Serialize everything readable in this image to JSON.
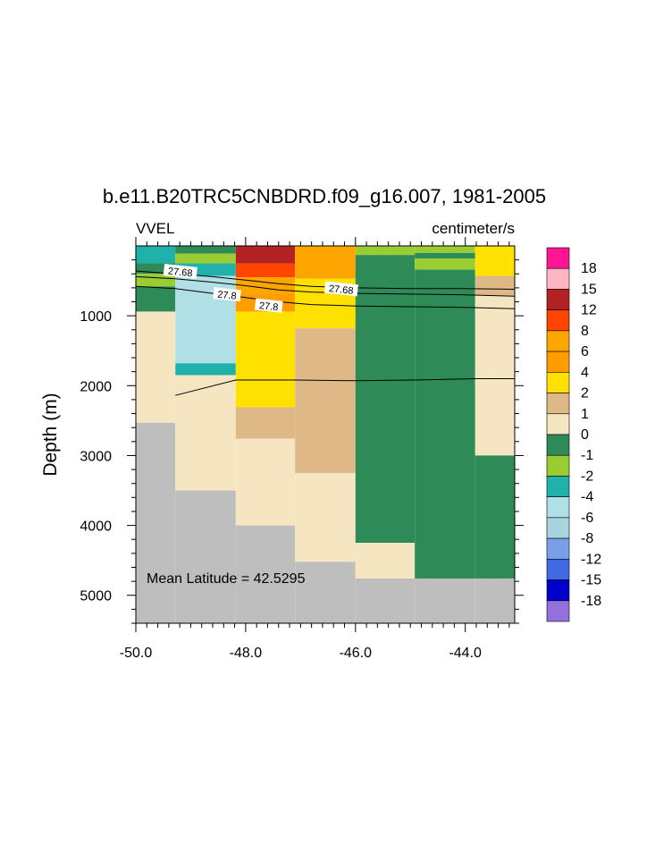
{
  "chart_data": {
    "type": "heatmap",
    "title": "b.e11.B20TRC5CNBDRD.f09_g16.007, 1981-2005",
    "left_label": "VVEL",
    "right_label": "centimeter/s",
    "xlabel": "",
    "ylabel": "Depth (m)",
    "xlim": [
      -50.0,
      -43.1
    ],
    "ylim": [
      5400,
      0
    ],
    "x_ticks": [
      -50.0,
      -48.0,
      -46.0,
      -44.0
    ],
    "x_tick_labels": [
      "-50.0",
      "-48.0",
      "-46.0",
      "-44.0"
    ],
    "y_ticks": [
      1000,
      2000,
      3000,
      4000,
      5000
    ],
    "y_tick_labels": [
      "1000",
      "2000",
      "3000",
      "4000",
      "5000"
    ],
    "annotation": "Mean Latitude = 42.5295",
    "columns_lon": [
      [
        -50.0,
        -49.28
      ],
      [
        -49.28,
        -48.18
      ],
      [
        -48.18,
        -47.1
      ],
      [
        -47.1,
        -46.0
      ],
      [
        -46.0,
        -44.92
      ],
      [
        -44.92,
        -43.82
      ],
      [
        -43.82,
        -43.1
      ]
    ],
    "colorbar": {
      "levels": [
        "18",
        "15",
        "12",
        "8",
        "6",
        "4",
        "2",
        "1",
        "0",
        "-1",
        "-2",
        "-4",
        "-6",
        "-8",
        "-12",
        "-15",
        "-18"
      ],
      "colors": [
        "#ff1493",
        "#ffb6c1",
        "#b22222",
        "#ff4500",
        "#ffa500",
        "#ff9d00",
        "#ffe100",
        "#deb887",
        "#f5e6c1",
        "#2e8b57",
        "#9acd32",
        "#20b2aa",
        "#b0e0e6",
        "#a6d5e0",
        "#7b9ee8",
        "#4169e1",
        "#0000cd",
        "#9370db"
      ]
    },
    "cells": [
      {
        "x0": -50.0,
        "x1": -49.28,
        "d0": 0,
        "d1": 250,
        "value": -4,
        "color": "#20b2aa"
      },
      {
        "x0": -50.0,
        "x1": -49.28,
        "d0": 250,
        "d1": 400,
        "value": -1,
        "color": "#2e8b57"
      },
      {
        "x0": -50.0,
        "x1": -49.28,
        "d0": 400,
        "d1": 580,
        "value": -2,
        "color": "#9acd32"
      },
      {
        "x0": -50.0,
        "x1": -49.28,
        "d0": 580,
        "d1": 940,
        "value": -1,
        "color": "#2e8b57"
      },
      {
        "x0": -50.0,
        "x1": -49.28,
        "d0": 940,
        "d1": 2530,
        "value": 0.5,
        "color": "#f5e6c1"
      },
      {
        "x0": -50.0,
        "x1": -49.28,
        "d0": 2530,
        "d1": 5400,
        "value": null,
        "color": "#bebebe"
      },
      {
        "x0": -49.28,
        "x1": -48.18,
        "d0": 0,
        "d1": 110,
        "value": -1,
        "color": "#2e8b57"
      },
      {
        "x0": -49.28,
        "x1": -48.18,
        "d0": 110,
        "d1": 250,
        "value": -2,
        "color": "#9acd32"
      },
      {
        "x0": -49.28,
        "x1": -48.18,
        "d0": 250,
        "d1": 430,
        "value": -4,
        "color": "#20b2aa"
      },
      {
        "x0": -49.28,
        "x1": -48.18,
        "d0": 430,
        "d1": 1680,
        "value": -6,
        "color": "#b0e0e6"
      },
      {
        "x0": -49.28,
        "x1": -48.18,
        "d0": 1680,
        "d1": 1850,
        "value": -4,
        "color": "#20b2aa"
      },
      {
        "x0": -49.28,
        "x1": -48.18,
        "d0": 1850,
        "d1": 3500,
        "value": 0.5,
        "color": "#f5e6c1"
      },
      {
        "x0": -49.28,
        "x1": -48.18,
        "d0": 3500,
        "d1": 5400,
        "value": null,
        "color": "#bebebe"
      },
      {
        "x0": -48.18,
        "x1": -47.1,
        "d0": 0,
        "d1": 250,
        "value": 12,
        "color": "#b22222"
      },
      {
        "x0": -48.18,
        "x1": -47.1,
        "d0": 250,
        "d1": 450,
        "value": 8,
        "color": "#ff4500"
      },
      {
        "x0": -48.18,
        "x1": -47.1,
        "d0": 450,
        "d1": 680,
        "value": 6,
        "color": "#ffa500"
      },
      {
        "x0": -48.18,
        "x1": -47.1,
        "d0": 680,
        "d1": 940,
        "value": 4,
        "color": "#ff9d00"
      },
      {
        "x0": -48.18,
        "x1": -47.1,
        "d0": 940,
        "d1": 2310,
        "value": 2,
        "color": "#ffe100"
      },
      {
        "x0": -48.18,
        "x1": -47.1,
        "d0": 2310,
        "d1": 2760,
        "value": 1,
        "color": "#deb887"
      },
      {
        "x0": -48.18,
        "x1": -47.1,
        "d0": 2760,
        "d1": 4000,
        "value": 0.5,
        "color": "#f5e6c1"
      },
      {
        "x0": -48.18,
        "x1": -47.1,
        "d0": 4000,
        "d1": 5400,
        "value": null,
        "color": "#bebebe"
      },
      {
        "x0": -47.1,
        "x1": -46.0,
        "d0": 0,
        "d1": 470,
        "value": 6,
        "color": "#ffa500"
      },
      {
        "x0": -47.1,
        "x1": -46.0,
        "d0": 470,
        "d1": 1180,
        "value": 2,
        "color": "#ffe100"
      },
      {
        "x0": -47.1,
        "x1": -46.0,
        "d0": 1180,
        "d1": 3250,
        "value": 1,
        "color": "#deb887"
      },
      {
        "x0": -47.1,
        "x1": -46.0,
        "d0": 3250,
        "d1": 4520,
        "value": 0.5,
        "color": "#f5e6c1"
      },
      {
        "x0": -47.1,
        "x1": -46.0,
        "d0": 4520,
        "d1": 5400,
        "value": null,
        "color": "#bebebe"
      },
      {
        "x0": -46.0,
        "x1": -44.92,
        "d0": 0,
        "d1": 130,
        "value": -2,
        "color": "#9acd32"
      },
      {
        "x0": -46.0,
        "x1": -44.92,
        "d0": 130,
        "d1": 4250,
        "value": -1,
        "color": "#2e8b57"
      },
      {
        "x0": -46.0,
        "x1": -44.92,
        "d0": 4250,
        "d1": 4760,
        "value": 0.5,
        "color": "#f5e6c1"
      },
      {
        "x0": -46.0,
        "x1": -44.92,
        "d0": 4760,
        "d1": 5400,
        "value": null,
        "color": "#bebebe"
      },
      {
        "x0": -44.92,
        "x1": -43.82,
        "d0": 0,
        "d1": 100,
        "value": -2,
        "color": "#9acd32"
      },
      {
        "x0": -44.92,
        "x1": -43.82,
        "d0": 100,
        "d1": 180,
        "value": -1,
        "color": "#2e8b57"
      },
      {
        "x0": -44.92,
        "x1": -43.82,
        "d0": 180,
        "d1": 340,
        "value": -2,
        "color": "#9acd32"
      },
      {
        "x0": -44.92,
        "x1": -43.82,
        "d0": 340,
        "d1": 4760,
        "value": -1,
        "color": "#2e8b57"
      },
      {
        "x0": -44.92,
        "x1": -43.82,
        "d0": 4760,
        "d1": 5400,
        "value": null,
        "color": "#bebebe"
      },
      {
        "x0": -43.82,
        "x1": -43.1,
        "d0": 0,
        "d1": 430,
        "value": 2,
        "color": "#ffe100"
      },
      {
        "x0": -43.82,
        "x1": -43.1,
        "d0": 430,
        "d1": 590,
        "value": 1,
        "color": "#deb887"
      },
      {
        "x0": -43.82,
        "x1": -43.1,
        "d0": 590,
        "d1": 710,
        "value": 1,
        "color": "#deb887"
      },
      {
        "x0": -43.82,
        "x1": -43.1,
        "d0": 710,
        "d1": 3000,
        "value": 0.5,
        "color": "#f5e6c1"
      },
      {
        "x0": -43.82,
        "x1": -43.1,
        "d0": 3000,
        "d1": 4760,
        "value": -1,
        "color": "#2e8b57"
      },
      {
        "x0": -43.82,
        "x1": -43.1,
        "d0": 4760,
        "d1": 5400,
        "value": null,
        "color": "#bebebe"
      }
    ],
    "contours": [
      {
        "level": "27.68",
        "points": [
          [
            -50.0,
            360
          ],
          [
            -49.28,
            400
          ],
          [
            -48.6,
            440
          ],
          [
            -48.0,
            490
          ],
          [
            -47.4,
            540
          ],
          [
            -46.8,
            580
          ],
          [
            -46.0,
            600
          ],
          [
            -45.0,
            610
          ],
          [
            -44.0,
            610
          ],
          [
            -43.1,
            620
          ]
        ]
      },
      {
        "level": "27.68",
        "points": [
          [
            -50.0,
            440
          ],
          [
            -49.28,
            470
          ],
          [
            -48.6,
            520
          ],
          [
            -48.0,
            570
          ],
          [
            -47.4,
            630
          ],
          [
            -46.8,
            660
          ],
          [
            -46.0,
            680
          ],
          [
            -45.0,
            690
          ],
          [
            -44.0,
            700
          ],
          [
            -43.1,
            720
          ]
        ]
      },
      {
        "level": "27.8",
        "points": [
          [
            -50.0,
            580
          ],
          [
            -49.28,
            610
          ],
          [
            -48.6,
            680
          ],
          [
            -48.0,
            740
          ],
          [
            -47.4,
            800
          ],
          [
            -46.8,
            840
          ],
          [
            -46.0,
            860
          ],
          [
            -45.0,
            870
          ],
          [
            -44.0,
            880
          ],
          [
            -43.1,
            900
          ]
        ]
      },
      {
        "level": "27.8",
        "points": [
          [
            -49.28,
            2140
          ],
          [
            -48.18,
            1920
          ],
          [
            -47.1,
            1920
          ],
          [
            -46.0,
            1930
          ],
          [
            -44.92,
            1920
          ],
          [
            -43.82,
            1900
          ],
          [
            -43.1,
            1900
          ]
        ]
      }
    ],
    "contour_labels": [
      {
        "text": "27.68",
        "x": -49.19,
        "d": 370
      },
      {
        "text": "27.68",
        "x": -46.26,
        "d": 620
      },
      {
        "text": "27.8",
        "x": -48.34,
        "d": 700
      },
      {
        "text": "27.8",
        "x": -47.58,
        "d": 860
      }
    ]
  }
}
